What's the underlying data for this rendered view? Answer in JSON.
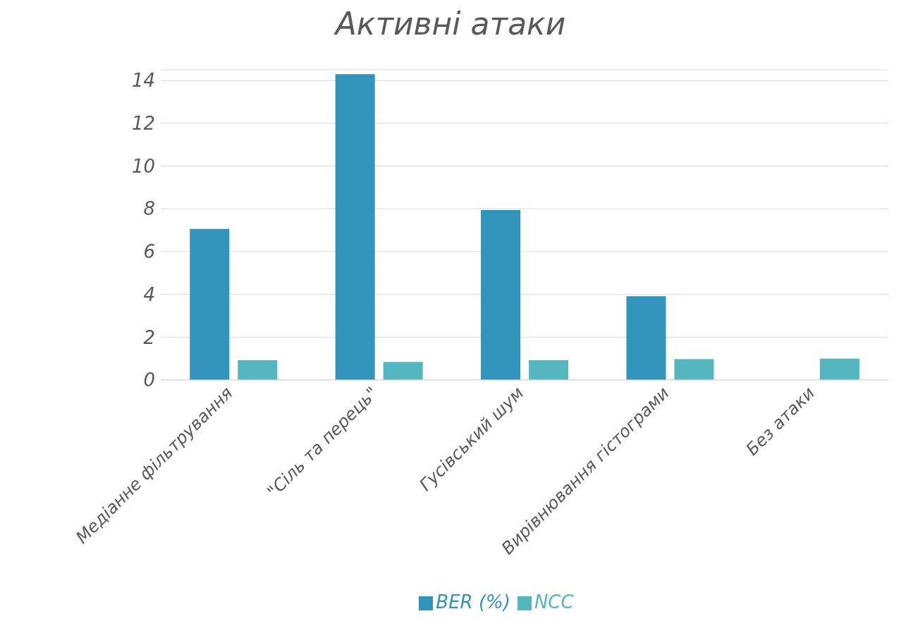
{
  "chart_data": {
    "type": "bar",
    "title": "Активні атаки",
    "categories": [
      "Медіанне фільтрування",
      "\"Сіль та перець\"",
      "Гусівський шум",
      "Вирівнювання гістограми",
      "Без атаки"
    ],
    "series": [
      {
        "name": "BER (%)",
        "color": "#3394bb",
        "values": [
          7.06,
          14.29,
          7.94,
          3.91,
          0
        ]
      },
      {
        "name": "NCC",
        "color": "#56b6c0",
        "values": [
          0.92,
          0.84,
          0.92,
          0.97,
          1.0
        ]
      }
    ],
    "ylim": [
      0,
      14.5
    ],
    "yticks": [
      0,
      2,
      4,
      6,
      8,
      10,
      12,
      14
    ],
    "grid": "y",
    "legend": "bottom"
  }
}
